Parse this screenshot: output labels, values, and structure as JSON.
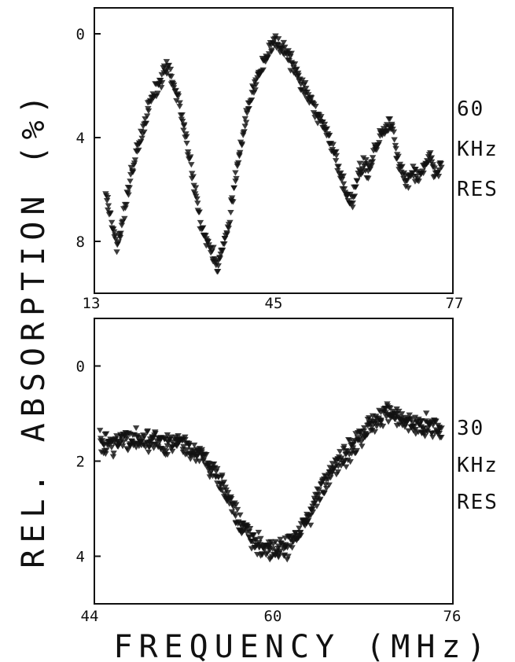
{
  "figure": {
    "ylabel": "REL. ABSORPTION (%)",
    "xlabel": "FREQUENCY (MHz)"
  },
  "chart_data": [
    {
      "type": "scatter",
      "title": "",
      "side_label": [
        "60",
        "KHz",
        "RES"
      ],
      "xlim": [
        13,
        77
      ],
      "ylim": [
        -1,
        10
      ],
      "x_ticks": [
        "13",
        "45",
        "77"
      ],
      "y_ticks": [
        "0",
        "4",
        "8"
      ],
      "y_tick_values": [
        0,
        4,
        8
      ],
      "curve": {
        "x": [
          15,
          17,
          20,
          23,
          26,
          28,
          30,
          32,
          35,
          37,
          39,
          41,
          43,
          45,
          47,
          49,
          51,
          53,
          55,
          57,
          58,
          59,
          60,
          61,
          62,
          63,
          64,
          65,
          66,
          67,
          68,
          69,
          70,
          71,
          72,
          73,
          74,
          75
        ],
        "y": [
          6.0,
          8.3,
          5.0,
          2.6,
          1.3,
          2.5,
          4.8,
          7.3,
          9.0,
          7.4,
          4.5,
          2.3,
          1.2,
          0.3,
          0.6,
          1.5,
          2.4,
          3.2,
          4.0,
          5.4,
          6.3,
          6.6,
          5.5,
          5.0,
          5.3,
          4.6,
          3.9,
          3.7,
          3.5,
          4.6,
          5.3,
          5.7,
          5.3,
          5.6,
          5.0,
          4.9,
          5.4,
          5.0
        ]
      }
    },
    {
      "type": "scatter",
      "title": "",
      "side_label": [
        "30",
        "KHz",
        "RES"
      ],
      "xlim": [
        44,
        76
      ],
      "ylim": [
        -1,
        5
      ],
      "x_ticks": [
        "44",
        "60",
        "76"
      ],
      "y_ticks": [
        "0",
        "2",
        "4"
      ],
      "y_tick_values": [
        0,
        2,
        4
      ],
      "curve": {
        "x": [
          44.5,
          46,
          48,
          50,
          52,
          53,
          54,
          55,
          56,
          57,
          58,
          59,
          60,
          61,
          62,
          63,
          64,
          65,
          66,
          67,
          68,
          69,
          70,
          71,
          72,
          73,
          74,
          75
        ],
        "y": [
          1.6,
          1.6,
          1.5,
          1.6,
          1.6,
          1.8,
          2.0,
          2.3,
          2.8,
          3.3,
          3.6,
          3.8,
          3.9,
          3.8,
          3.6,
          3.2,
          2.7,
          2.3,
          2.0,
          1.7,
          1.4,
          1.2,
          1.0,
          1.1,
          1.2,
          1.3,
          1.2,
          1.4
        ]
      }
    }
  ]
}
